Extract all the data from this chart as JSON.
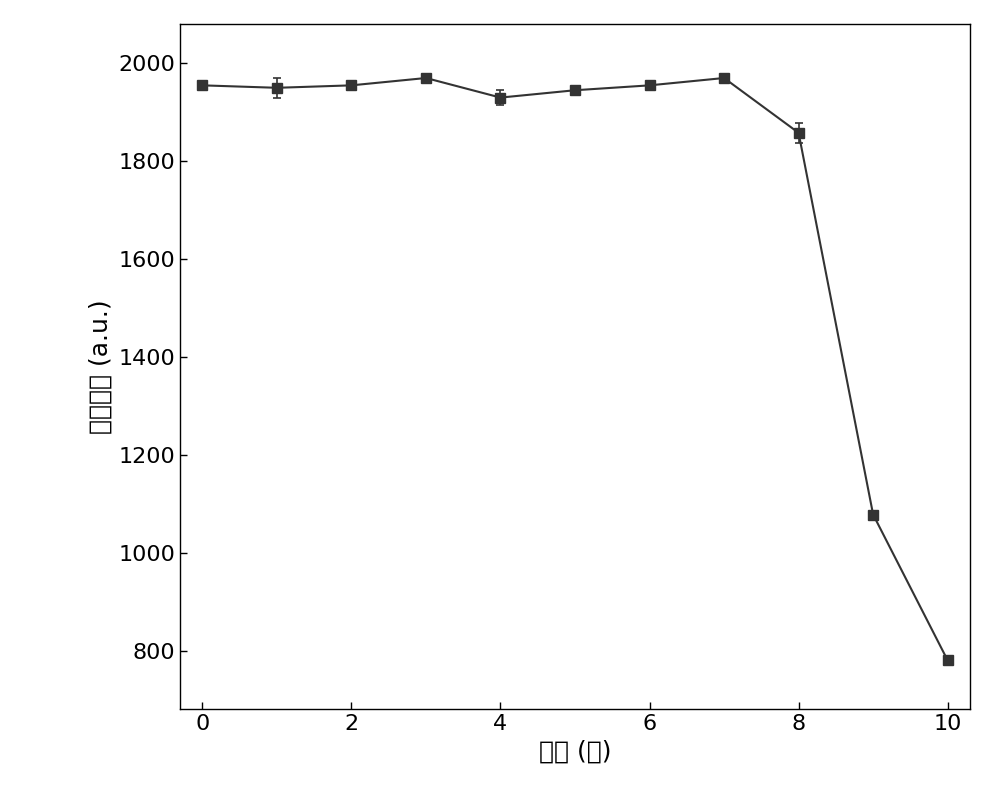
{
  "x": [
    0,
    1,
    2,
    3,
    4,
    5,
    6,
    7,
    8,
    9,
    10
  ],
  "y": [
    1955,
    1950,
    1955,
    1970,
    1930,
    1945,
    1955,
    1970,
    1858,
    1078,
    780
  ],
  "yerr": [
    0,
    20,
    0,
    0,
    15,
    0,
    0,
    0,
    20,
    0,
    0
  ],
  "xlabel": "时间 (天)",
  "ylabel": "荧光强度 (a.u.)",
  "xlim": [
    -0.3,
    10.3
  ],
  "ylim": [
    680,
    2080
  ],
  "yticks": [
    800,
    1000,
    1200,
    1400,
    1600,
    1800,
    2000
  ],
  "xticks": [
    0,
    2,
    4,
    6,
    8,
    10
  ],
  "line_color": "#333333",
  "marker": "s",
  "markersize": 7,
  "linewidth": 1.5,
  "background_color": "#ffffff",
  "xlabel_fontsize": 18,
  "ylabel_fontsize": 18,
  "tick_fontsize": 16,
  "figsize": [
    10.0,
    8.06
  ],
  "dpi": 100
}
